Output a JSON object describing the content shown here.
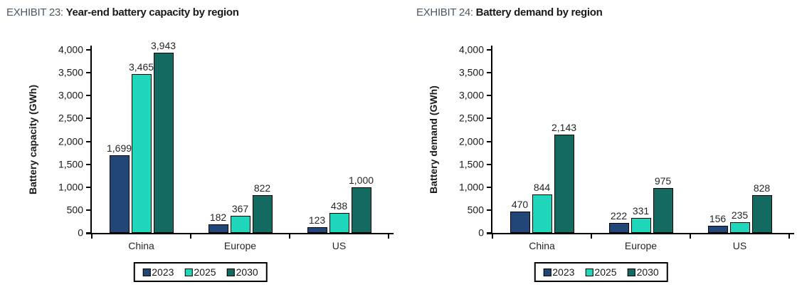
{
  "page": {
    "background": "#ffffff",
    "axis_color": "#000000",
    "exhibit_label_color": "#4A5963",
    "title_color": "#1a1a1a",
    "bar_outline_color": "#000000"
  },
  "chart_data": [
    {
      "type": "bar",
      "exhibit_label": "EXHIBIT 23:",
      "title": "Year-end battery capacity by region",
      "ylabel": "Battery capacity (GWh)",
      "xlabel": "",
      "categories": [
        "China",
        "Europe",
        "US"
      ],
      "series": [
        {
          "name": "2023",
          "color": "#234678",
          "values": [
            1699,
            182,
            123
          ]
        },
        {
          "name": "2025",
          "color": "#20D6BA",
          "values": [
            3465,
            367,
            438
          ]
        },
        {
          "name": "2030",
          "color": "#126A60",
          "values": [
            3943,
            822,
            1000
          ]
        }
      ],
      "ylim": [
        0,
        4000
      ],
      "ytick_step": 500,
      "grid": false,
      "value_labels": true,
      "legend_position": "bottom"
    },
    {
      "type": "bar",
      "exhibit_label": "EXHIBIT 24:",
      "title": "Battery demand by region",
      "ylabel": "Battery demand (GWh)",
      "xlabel": "",
      "categories": [
        "China",
        "Europe",
        "US"
      ],
      "series": [
        {
          "name": "2023",
          "color": "#234678",
          "values": [
            470,
            222,
            156
          ]
        },
        {
          "name": "2025",
          "color": "#20D6BA",
          "values": [
            844,
            331,
            235
          ]
        },
        {
          "name": "2030",
          "color": "#126A60",
          "values": [
            2143,
            975,
            828
          ]
        }
      ],
      "ylim": [
        0,
        4000
      ],
      "ytick_step": 500,
      "grid": false,
      "value_labels": true,
      "legend_position": "bottom"
    }
  ]
}
